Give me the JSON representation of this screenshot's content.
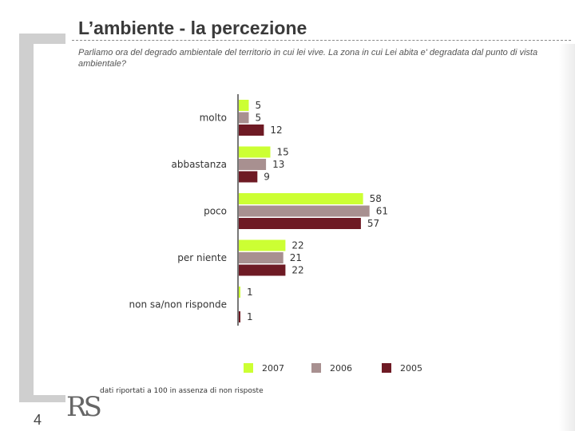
{
  "header": {
    "title": "L’ambiente - la percezione",
    "question": "Parliamo ora del degrado ambientale del territorio in cui lei vive. La zona in cui Lei abita e' degradata dal punto di vista ambientale?"
  },
  "footer": {
    "note": "dati riportati a 100 in assenza di non risposte",
    "page_number": "4",
    "logo_text": "RS"
  },
  "chart_data": {
    "type": "bar",
    "orientation": "horizontal",
    "categories": [
      "molto",
      "abbastanza",
      "poco",
      "per niente",
      "non sa/non risponde"
    ],
    "series": [
      {
        "name": "2007",
        "color": "#ccff33",
        "values": [
          5,
          15,
          58,
          22,
          1
        ]
      },
      {
        "name": "2006",
        "color": "#a89090",
        "values": [
          5,
          13,
          61,
          21,
          null
        ]
      },
      {
        "name": "2005",
        "color": "#6e1a24",
        "values": [
          12,
          9,
          57,
          22,
          1
        ]
      }
    ],
    "xlim": [
      0,
      65
    ],
    "grid": false,
    "legend_position": "bottom"
  }
}
